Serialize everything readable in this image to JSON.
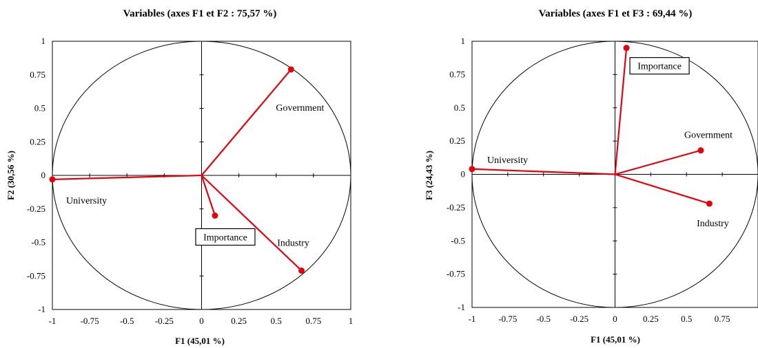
{
  "chart_data": [
    {
      "type": "scatter",
      "subtype": "correlation-circle",
      "title": "Variables (axes F1 et F2 : 75,57 %)",
      "xlabel": "F1 (45,01 %)",
      "ylabel": "F2 (30,56 %)",
      "xlim": [
        -1,
        1
      ],
      "ylim": [
        -1,
        1
      ],
      "xticks": [
        "-1",
        "-0.75",
        "-0.5",
        "-0.25",
        "0",
        "0.25",
        "0.5",
        "0.75",
        "1"
      ],
      "yticks": [
        "1",
        "0.75",
        "0.5",
        "0.25",
        "0",
        "-0.25",
        "-0.5",
        "-0.75",
        "-1"
      ],
      "grid": false,
      "vector_color": "#e8000b",
      "points": [
        {
          "name": "Government",
          "x": 0.6,
          "y": 0.79,
          "boxed": false
        },
        {
          "name": "University",
          "x": -1.0,
          "y": -0.03,
          "boxed": false
        },
        {
          "name": "Importance",
          "x": 0.09,
          "y": -0.3,
          "boxed": true
        },
        {
          "name": "Industry",
          "x": 0.67,
          "y": -0.71,
          "boxed": false
        }
      ]
    },
    {
      "type": "scatter",
      "subtype": "correlation-circle",
      "title": "Variables (axes F1 et F3 : 69,44 %)",
      "xlabel": "F1 (45,01 %)",
      "ylabel": "F3 (24,43 %)",
      "xlim": [
        -1,
        1
      ],
      "ylim": [
        -1,
        1
      ],
      "xticks": [
        "-1",
        "-0.75",
        "-0.5",
        "-0.25",
        "0",
        "0.25",
        "0.5",
        "0.75"
      ],
      "yticks": [
        "1",
        "0.75",
        "0.5",
        "0.25",
        "0",
        "-0.25",
        "-0.5",
        "-0.75",
        "-1"
      ],
      "grid": false,
      "vector_color": "#e8000b",
      "points": [
        {
          "name": "Importance",
          "x": 0.08,
          "y": 0.95,
          "boxed": true
        },
        {
          "name": "University",
          "x": -1.0,
          "y": 0.04,
          "boxed": false
        },
        {
          "name": "Government",
          "x": 0.6,
          "y": 0.18,
          "boxed": false
        },
        {
          "name": "Industry",
          "x": 0.66,
          "y": -0.22,
          "boxed": false
        }
      ]
    }
  ]
}
